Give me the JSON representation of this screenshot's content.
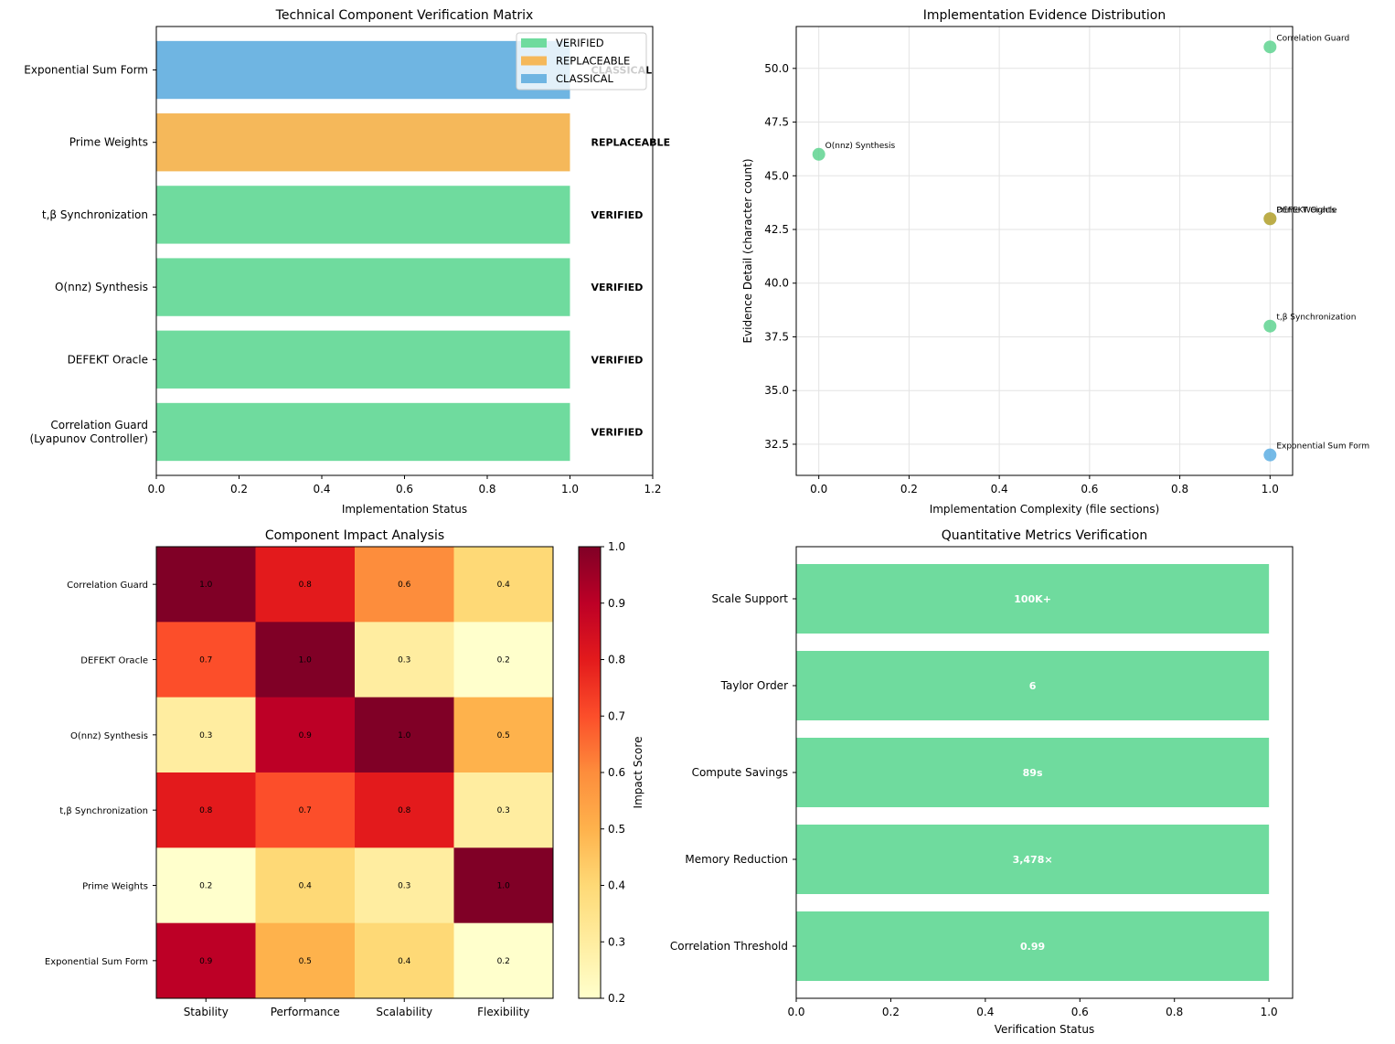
{
  "chart_data": [
    {
      "id": "verification_matrix",
      "type": "bar",
      "orientation": "horizontal",
      "title": "Technical Component Verification Matrix",
      "xlabel": "Implementation Status",
      "ylabel": "",
      "xlim": [
        0,
        1.2
      ],
      "xticks": [
        "0.0",
        "0.2",
        "0.4",
        "0.6",
        "0.8",
        "1.0",
        "1.2"
      ],
      "categories": [
        "Correlation Guard\n(Lyapunov Controller)",
        "DEFEKT Oracle",
        "O(nnz) Synthesis",
        "t,β Synchronization",
        "Prime Weights",
        "Exponential Sum Form"
      ],
      "values": [
        1,
        1,
        1,
        1,
        1,
        1
      ],
      "status": [
        "VERIFIED",
        "VERIFIED",
        "VERIFIED",
        "VERIFIED",
        "REPLACEABLE",
        "CLASSICAL"
      ],
      "status_colors": {
        "VERIFIED": "#6fdb9e",
        "REPLACEABLE": "#f5b85a",
        "CLASSICAL": "#6fb5e2"
      },
      "legend": {
        "position": "top-right",
        "entries": [
          "VERIFIED",
          "REPLACEABLE",
          "CLASSICAL"
        ]
      }
    },
    {
      "id": "evidence_distribution",
      "type": "scatter",
      "title": "Implementation Evidence Distribution",
      "xlabel": "Implementation Complexity (file sections)",
      "ylabel": "Evidence Detail (character count)",
      "xlim": [
        -0.05,
        1.05
      ],
      "ylim": [
        31.05,
        51.95
      ],
      "xticks": [
        "0.0",
        "0.2",
        "0.4",
        "0.6",
        "0.8",
        "1.0"
      ],
      "yticks": [
        "32.5",
        "35.0",
        "37.5",
        "40.0",
        "42.5",
        "45.0",
        "47.5",
        "50.0"
      ],
      "grid": true,
      "points": [
        {
          "label": "Correlation Guard",
          "x": 1,
          "y": 51,
          "status": "VERIFIED"
        },
        {
          "label": "DEFEKT Oracle",
          "x": 1,
          "y": 43,
          "status": "VERIFIED"
        },
        {
          "label": "O(nnz) Synthesis",
          "x": 0,
          "y": 46,
          "status": "VERIFIED"
        },
        {
          "label": "t,β Synchronization",
          "x": 1,
          "y": 38,
          "status": "VERIFIED"
        },
        {
          "label": "Prime Weights",
          "x": 1,
          "y": 43,
          "status": "REPLACEABLE"
        },
        {
          "label": "Exponential Sum Form",
          "x": 1,
          "y": 32,
          "status": "CLASSICAL"
        }
      ]
    },
    {
      "id": "impact_analysis",
      "type": "heatmap",
      "title": "Component Impact Analysis",
      "rows": [
        "Correlation Guard",
        "DEFEKT Oracle",
        "O(nnz) Synthesis",
        "t,β Synchronization",
        "Prime Weights",
        "Exponential Sum Form"
      ],
      "columns": [
        "Stability",
        "Performance",
        "Scalability",
        "Flexibility"
      ],
      "values": [
        [
          1.0,
          0.8,
          0.6,
          0.4
        ],
        [
          0.7,
          1.0,
          0.3,
          0.2
        ],
        [
          0.3,
          0.9,
          1.0,
          0.5
        ],
        [
          0.8,
          0.7,
          0.8,
          0.3
        ],
        [
          0.2,
          0.4,
          0.3,
          1.0
        ],
        [
          0.9,
          0.5,
          0.4,
          0.2
        ]
      ],
      "colormap": "YlOrRd",
      "colorbar": {
        "label": "Impact Score",
        "range": [
          0.2,
          1.0
        ],
        "ticks": [
          "0.2",
          "0.3",
          "0.4",
          "0.5",
          "0.6",
          "0.7",
          "0.8",
          "0.9",
          "1.0"
        ]
      }
    },
    {
      "id": "quantitative_metrics",
      "type": "bar",
      "orientation": "horizontal",
      "title": "Quantitative Metrics Verification",
      "xlabel": "Verification Status",
      "ylabel": "",
      "xlim": [
        0,
        1.05
      ],
      "xticks": [
        "0.0",
        "0.2",
        "0.4",
        "0.6",
        "0.8",
        "1.0"
      ],
      "categories": [
        "Correlation Threshold",
        "Memory Reduction",
        "Compute Savings",
        "Taylor Order",
        "Scale Support"
      ],
      "values": [
        1,
        1,
        1,
        1,
        1
      ],
      "bar_labels": [
        "0.99",
        "3,478×",
        "89s",
        "6",
        "100K+"
      ],
      "color": "#6fdb9e"
    }
  ]
}
